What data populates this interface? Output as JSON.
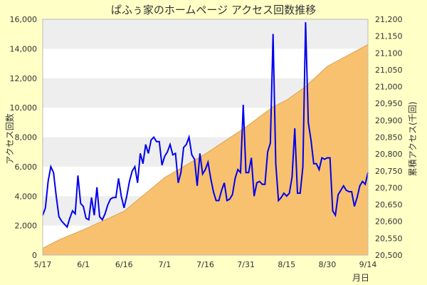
{
  "chart_data": {
    "type": "line",
    "title": "ぱふぅ家のホームページ アクセス回数推移",
    "xlabel": "月日",
    "ylabel_left": "アクセス回数",
    "ylabel_right": "累積アクセス(千回)",
    "x_tick_labels": [
      "5/17",
      "6/1",
      "6/16",
      "7/1",
      "7/16",
      "7/31",
      "8/15",
      "8/30",
      "9/14"
    ],
    "x_start_date": "5/17",
    "x_end_date": "9/14",
    "left_axis": {
      "range": [
        0,
        16000
      ],
      "ticks": [
        "0",
        "2,000",
        "4,000",
        "6,000",
        "8,000",
        "10,000",
        "12,000",
        "14,000",
        "16,000"
      ]
    },
    "right_axis": {
      "range": [
        20500,
        21200
      ],
      "ticks": [
        "20,500",
        "20,550",
        "20,600",
        "20,650",
        "20,700",
        "20,750",
        "20,800",
        "20,850",
        "20,900",
        "20,950",
        "21,000",
        "21,050",
        "21,100",
        "21,150",
        "21,200"
      ]
    },
    "grid": "horizontal bands",
    "series": [
      {
        "name": "",
        "kind": "line",
        "axis": "left",
        "color": "#0000ee",
        "points": [
          [
            "5/17",
            2700
          ],
          [
            "5/18",
            3200
          ],
          [
            "5/19",
            5000
          ],
          [
            "5/20",
            6000
          ],
          [
            "5/21",
            5600
          ],
          [
            "5/22",
            4000
          ],
          [
            "5/23",
            2600
          ],
          [
            "5/24",
            2300
          ],
          [
            "5/25",
            2100
          ],
          [
            "5/26",
            1900
          ],
          [
            "5/27",
            2500
          ],
          [
            "5/28",
            3000
          ],
          [
            "5/29",
            2800
          ],
          [
            "5/30",
            5400
          ],
          [
            "5/31",
            3500
          ],
          [
            "6/1",
            3300
          ],
          [
            "6/2",
            2500
          ],
          [
            "6/3",
            2400
          ],
          [
            "6/4",
            3900
          ],
          [
            "6/5",
            2700
          ],
          [
            "6/6",
            4600
          ],
          [
            "6/7",
            2600
          ],
          [
            "6/8",
            2400
          ],
          [
            "6/9",
            2800
          ],
          [
            "6/10",
            3400
          ],
          [
            "6/11",
            3800
          ],
          [
            "6/12",
            3900
          ],
          [
            "6/13",
            3900
          ],
          [
            "6/14",
            5200
          ],
          [
            "6/15",
            4000
          ],
          [
            "6/16",
            3200
          ],
          [
            "6/17",
            4000
          ],
          [
            "6/18",
            5000
          ],
          [
            "6/19",
            5700
          ],
          [
            "6/20",
            6000
          ],
          [
            "6/21",
            4900
          ],
          [
            "6/22",
            6900
          ],
          [
            "6/23",
            6200
          ],
          [
            "6/24",
            7500
          ],
          [
            "6/25",
            6900
          ],
          [
            "6/26",
            7800
          ],
          [
            "6/27",
            8000
          ],
          [
            "6/28",
            7700
          ],
          [
            "6/29",
            7700
          ],
          [
            "6/30",
            6100
          ],
          [
            "7/1",
            6700
          ],
          [
            "7/2",
            7000
          ],
          [
            "7/3",
            7500
          ],
          [
            "7/4",
            6800
          ],
          [
            "7/5",
            6900
          ],
          [
            "7/6",
            4900
          ],
          [
            "7/7",
            5600
          ],
          [
            "7/8",
            7300
          ],
          [
            "7/9",
            7500
          ],
          [
            "7/10",
            8000
          ],
          [
            "7/11",
            6800
          ],
          [
            "7/12",
            6500
          ],
          [
            "7/13",
            4700
          ],
          [
            "7/14",
            6900
          ],
          [
            "7/15",
            5500
          ],
          [
            "7/16",
            5800
          ],
          [
            "7/17",
            6300
          ],
          [
            "7/18",
            5200
          ],
          [
            "7/19",
            4300
          ],
          [
            "7/20",
            3700
          ],
          [
            "7/21",
            3700
          ],
          [
            "7/22",
            4400
          ],
          [
            "7/23",
            4900
          ],
          [
            "7/24",
            3700
          ],
          [
            "7/25",
            3800
          ],
          [
            "7/26",
            4100
          ],
          [
            "7/27",
            5200
          ],
          [
            "7/28",
            5800
          ],
          [
            "7/29",
            5600
          ],
          [
            "7/30",
            10200
          ],
          [
            "7/31",
            5600
          ],
          [
            "8/1",
            5600
          ],
          [
            "8/2",
            6600
          ],
          [
            "8/3",
            4000
          ],
          [
            "8/4",
            4900
          ],
          [
            "8/5",
            5000
          ],
          [
            "8/6",
            4800
          ],
          [
            "8/7",
            4800
          ],
          [
            "8/8",
            7000
          ],
          [
            "8/9",
            7600
          ],
          [
            "8/10",
            15000
          ],
          [
            "8/11",
            6200
          ],
          [
            "8/12",
            3700
          ],
          [
            "8/13",
            3900
          ],
          [
            "8/14",
            4200
          ],
          [
            "8/15",
            4000
          ],
          [
            "8/16",
            4200
          ],
          [
            "8/17",
            5300
          ],
          [
            "8/18",
            8600
          ],
          [
            "8/19",
            4200
          ],
          [
            "8/20",
            4200
          ],
          [
            "8/21",
            6000
          ],
          [
            "8/22",
            15800
          ],
          [
            "8/23",
            9000
          ],
          [
            "8/24",
            7800
          ],
          [
            "8/25",
            6200
          ],
          [
            "8/26",
            6200
          ],
          [
            "8/27",
            5800
          ],
          [
            "8/28",
            6600
          ],
          [
            "8/29",
            6500
          ],
          [
            "8/30",
            6600
          ],
          [
            "8/31",
            6600
          ],
          [
            "9/1",
            3000
          ],
          [
            "9/2",
            2700
          ],
          [
            "9/3",
            4100
          ],
          [
            "9/4",
            4400
          ],
          [
            "9/5",
            4700
          ],
          [
            "9/6",
            4400
          ],
          [
            "9/7",
            4300
          ],
          [
            "9/8",
            4300
          ],
          [
            "9/9",
            3300
          ],
          [
            "9/10",
            3900
          ],
          [
            "9/11",
            4700
          ],
          [
            "9/12",
            5000
          ],
          [
            "9/13",
            4800
          ],
          [
            "9/14",
            5600
          ]
        ]
      },
      {
        "name": "",
        "kind": "area",
        "axis": "right",
        "color": "#f7c170",
        "points": [
          [
            "5/17",
            20520
          ],
          [
            "5/23",
            20545
          ],
          [
            "6/1",
            20575
          ],
          [
            "6/16",
            20630
          ],
          [
            "6/25",
            20690
          ],
          [
            "7/1",
            20730
          ],
          [
            "7/16",
            20800
          ],
          [
            "7/31",
            20880
          ],
          [
            "8/10",
            20940
          ],
          [
            "8/15",
            20960
          ],
          [
            "8/22",
            21000
          ],
          [
            "8/30",
            21060
          ],
          [
            "9/14",
            21125
          ]
        ]
      }
    ]
  }
}
